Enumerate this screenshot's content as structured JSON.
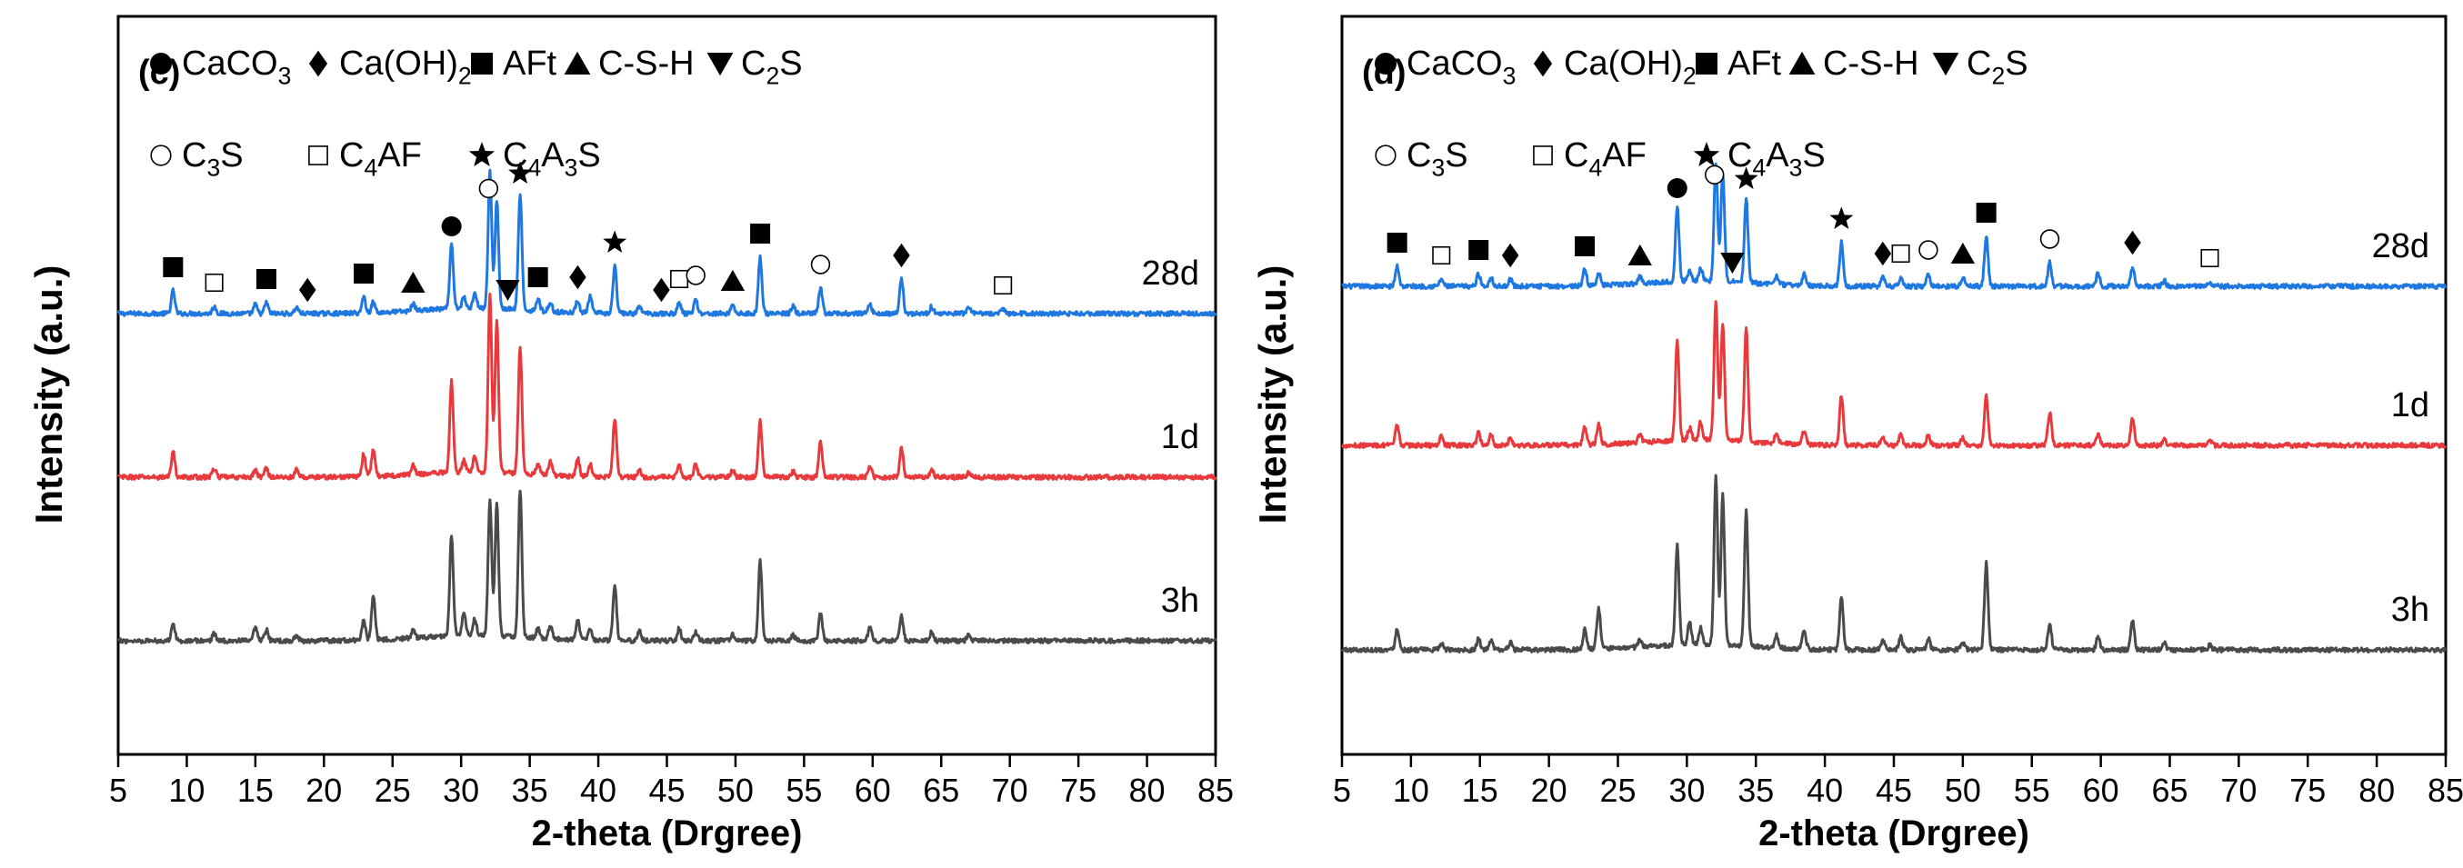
{
  "chart_data": [
    {
      "panel": "(c)",
      "type": "line",
      "xlabel": "2-theta (Drgree)",
      "ylabel": "Intensity (a.u.)",
      "xlim": [
        5,
        85
      ],
      "xticks": [
        5,
        10,
        15,
        20,
        25,
        30,
        35,
        40,
        45,
        50,
        55,
        60,
        65,
        70,
        75,
        80,
        85
      ],
      "legend": [
        {
          "symbol": "filled-circle",
          "label": "CaCO",
          "sub": "3",
          "tail": ""
        },
        {
          "symbol": "filled-diamond",
          "label": "Ca(OH)",
          "sub": "2",
          "tail": ""
        },
        {
          "symbol": "filled-square",
          "label": "AFt",
          "sub": "",
          "tail": ""
        },
        {
          "symbol": "filled-triangle-up",
          "label": "C-S-H",
          "sub": "",
          "tail": ""
        },
        {
          "symbol": "filled-triangle-down",
          "label": "C",
          "sub": "2",
          "tail": "S"
        },
        {
          "symbol": "open-circle",
          "label": "C",
          "sub": "3",
          "tail": "S"
        },
        {
          "symbol": "open-square",
          "label": "C",
          "sub": "4",
          "tail": "AF"
        },
        {
          "symbol": "star",
          "label": "C",
          "sub": "4",
          "tail": "A3S"
        }
      ],
      "peak_markers": [
        {
          "x": 9.0,
          "symbol": "filled-square"
        },
        {
          "x": 12.0,
          "symbol": "open-square"
        },
        {
          "x": 15.8,
          "symbol": "filled-square"
        },
        {
          "x": 18.8,
          "symbol": "filled-diamond"
        },
        {
          "x": 22.9,
          "symbol": "filled-square"
        },
        {
          "x": 26.5,
          "symbol": "filled-triangle-up"
        },
        {
          "x": 29.3,
          "symbol": "filled-circle"
        },
        {
          "x": 32.0,
          "symbol": "open-circle"
        },
        {
          "x": 33.4,
          "symbol": "filled-triangle-down"
        },
        {
          "x": 34.3,
          "symbol": "star"
        },
        {
          "x": 35.6,
          "symbol": "filled-square"
        },
        {
          "x": 38.5,
          "symbol": "filled-diamond"
        },
        {
          "x": 41.2,
          "symbol": "star"
        },
        {
          "x": 44.6,
          "symbol": "filled-diamond"
        },
        {
          "x": 45.9,
          "symbol": "open-square"
        },
        {
          "x": 47.1,
          "symbol": "open-circle"
        },
        {
          "x": 49.8,
          "symbol": "filled-triangle-up"
        },
        {
          "x": 51.8,
          "symbol": "filled-square"
        },
        {
          "x": 56.2,
          "symbol": "open-circle"
        },
        {
          "x": 62.1,
          "symbol": "filled-diamond"
        },
        {
          "x": 69.5,
          "symbol": "open-square"
        }
      ],
      "series": [
        {
          "name": "28d",
          "color": "#1f77e0",
          "offset": 400,
          "peaks": [
            [
              9.0,
              25
            ],
            [
              12.0,
              8
            ],
            [
              15.0,
              10
            ],
            [
              15.8,
              12
            ],
            [
              18.0,
              7
            ],
            [
              22.9,
              18
            ],
            [
              23.6,
              12
            ],
            [
              26.5,
              8
            ],
            [
              29.3,
              70
            ],
            [
              30.2,
              12
            ],
            [
              31.0,
              18
            ],
            [
              32.1,
              150
            ],
            [
              32.6,
              120
            ],
            [
              34.3,
              128
            ],
            [
              35.6,
              14
            ],
            [
              36.5,
              10
            ],
            [
              38.5,
              14
            ],
            [
              39.4,
              18
            ],
            [
              41.2,
              52
            ],
            [
              43.0,
              8
            ],
            [
              45.9,
              12
            ],
            [
              47.1,
              16
            ],
            [
              49.8,
              10
            ],
            [
              51.8,
              62
            ],
            [
              54.2,
              8
            ],
            [
              56.2,
              28
            ],
            [
              59.8,
              10
            ],
            [
              62.1,
              38
            ],
            [
              64.3,
              8
            ],
            [
              67.0,
              6
            ],
            [
              69.5,
              5
            ]
          ]
        },
        {
          "name": "1d",
          "color": "#e8393d",
          "offset": 220,
          "peaks": [
            [
              9.0,
              28
            ],
            [
              12.0,
              10
            ],
            [
              15.0,
              8
            ],
            [
              15.8,
              10
            ],
            [
              18.0,
              8
            ],
            [
              22.9,
              25
            ],
            [
              23.6,
              30
            ],
            [
              26.5,
              10
            ],
            [
              29.3,
              100
            ],
            [
              30.2,
              12
            ],
            [
              31.0,
              18
            ],
            [
              32.1,
              195
            ],
            [
              32.6,
              165
            ],
            [
              34.3,
              140
            ],
            [
              35.6,
              12
            ],
            [
              36.5,
              15
            ],
            [
              38.5,
              20
            ],
            [
              39.4,
              14
            ],
            [
              41.2,
              65
            ],
            [
              43.0,
              8
            ],
            [
              45.9,
              14
            ],
            [
              47.1,
              14
            ],
            [
              49.8,
              8
            ],
            [
              51.8,
              62
            ],
            [
              54.2,
              6
            ],
            [
              56.2,
              38
            ],
            [
              59.8,
              12
            ],
            [
              62.1,
              32
            ],
            [
              64.3,
              8
            ],
            [
              67.0,
              5
            ]
          ]
        },
        {
          "name": "3h",
          "color": "#4a4a4a",
          "offset": 40,
          "peaks": [
            [
              9.0,
              20
            ],
            [
              12.0,
              8
            ],
            [
              15.0,
              14
            ],
            [
              15.8,
              12
            ],
            [
              18.0,
              6
            ],
            [
              22.9,
              22
            ],
            [
              23.6,
              50
            ],
            [
              26.5,
              8
            ],
            [
              29.3,
              112
            ],
            [
              30.2,
              25
            ],
            [
              31.0,
              18
            ],
            [
              32.1,
              150
            ],
            [
              32.6,
              145
            ],
            [
              34.3,
              162
            ],
            [
              35.6,
              10
            ],
            [
              36.5,
              14
            ],
            [
              38.5,
              22
            ],
            [
              39.4,
              14
            ],
            [
              41.2,
              62
            ],
            [
              43.0,
              10
            ],
            [
              45.9,
              14
            ],
            [
              47.1,
              10
            ],
            [
              49.8,
              8
            ],
            [
              51.8,
              88
            ],
            [
              54.2,
              6
            ],
            [
              56.2,
              30
            ],
            [
              59.8,
              14
            ],
            [
              62.1,
              28
            ],
            [
              64.3,
              10
            ],
            [
              67.0,
              6
            ]
          ]
        }
      ]
    },
    {
      "panel": "(d)",
      "type": "line",
      "xlabel": "2-theta (Drgree)",
      "ylabel": "Intensity (a.u.)",
      "xlim": [
        5,
        85
      ],
      "xticks": [
        5,
        10,
        15,
        20,
        25,
        30,
        35,
        40,
        45,
        50,
        55,
        60,
        65,
        70,
        75,
        80,
        85
      ],
      "legend": [
        {
          "symbol": "filled-circle",
          "label": "CaCO",
          "sub": "3",
          "tail": ""
        },
        {
          "symbol": "filled-diamond",
          "label": "Ca(OH)",
          "sub": "2",
          "tail": ""
        },
        {
          "symbol": "filled-square",
          "label": "AFt",
          "sub": "",
          "tail": ""
        },
        {
          "symbol": "filled-triangle-up",
          "label": "C-S-H",
          "sub": "",
          "tail": ""
        },
        {
          "symbol": "filled-triangle-down",
          "label": "C",
          "sub": "2",
          "tail": "S"
        },
        {
          "symbol": "open-circle",
          "label": "C",
          "sub": "3",
          "tail": "S"
        },
        {
          "symbol": "open-square",
          "label": "C",
          "sub": "4",
          "tail": "AF"
        },
        {
          "symbol": "star",
          "label": "C",
          "sub": "4",
          "tail": "A3S"
        }
      ],
      "peak_markers": [
        {
          "x": 9.0,
          "symbol": "filled-square"
        },
        {
          "x": 12.2,
          "symbol": "open-square"
        },
        {
          "x": 14.9,
          "symbol": "filled-square"
        },
        {
          "x": 17.2,
          "symbol": "filled-diamond"
        },
        {
          "x": 22.6,
          "symbol": "filled-square"
        },
        {
          "x": 26.6,
          "symbol": "filled-triangle-up"
        },
        {
          "x": 29.3,
          "symbol": "filled-circle"
        },
        {
          "x": 32.0,
          "symbol": "open-circle"
        },
        {
          "x": 33.3,
          "symbol": "filled-triangle-down"
        },
        {
          "x": 34.3,
          "symbol": "star"
        },
        {
          "x": 41.2,
          "symbol": "star"
        },
        {
          "x": 44.2,
          "symbol": "filled-diamond"
        },
        {
          "x": 45.5,
          "symbol": "open-square"
        },
        {
          "x": 47.5,
          "symbol": "open-circle"
        },
        {
          "x": 50.0,
          "symbol": "filled-triangle-up"
        },
        {
          "x": 51.7,
          "symbol": "filled-square"
        },
        {
          "x": 56.3,
          "symbol": "open-circle"
        },
        {
          "x": 62.3,
          "symbol": "filled-diamond"
        },
        {
          "x": 67.9,
          "symbol": "open-square"
        }
      ],
      "series": [
        {
          "name": "28d",
          "color": "#1f77e0",
          "offset": 430,
          "peaks": [
            [
              9.0,
              22
            ],
            [
              12.2,
              8
            ],
            [
              14.9,
              14
            ],
            [
              15.8,
              10
            ],
            [
              17.2,
              8
            ],
            [
              22.6,
              18
            ],
            [
              23.6,
              14
            ],
            [
              26.6,
              8
            ],
            [
              29.3,
              82
            ],
            [
              30.2,
              12
            ],
            [
              31.0,
              15
            ],
            [
              32.1,
              130
            ],
            [
              32.6,
              120
            ],
            [
              34.3,
              92
            ],
            [
              36.5,
              10
            ],
            [
              38.5,
              12
            ],
            [
              41.2,
              48
            ],
            [
              44.2,
              10
            ],
            [
              45.5,
              10
            ],
            [
              47.5,
              14
            ],
            [
              50.0,
              10
            ],
            [
              51.7,
              55
            ],
            [
              56.3,
              26
            ],
            [
              59.8,
              14
            ],
            [
              62.3,
              22
            ],
            [
              64.6,
              6
            ],
            [
              67.9,
              5
            ]
          ]
        },
        {
          "name": "1d",
          "color": "#e8393d",
          "offset": 255,
          "peaks": [
            [
              9.0,
              22
            ],
            [
              12.2,
              10
            ],
            [
              14.9,
              14
            ],
            [
              15.8,
              12
            ],
            [
              17.2,
              8
            ],
            [
              22.6,
              20
            ],
            [
              23.6,
              22
            ],
            [
              26.6,
              8
            ],
            [
              29.3,
              110
            ],
            [
              30.2,
              14
            ],
            [
              31.0,
              20
            ],
            [
              32.1,
              150
            ],
            [
              32.6,
              130
            ],
            [
              34.3,
              125
            ],
            [
              36.5,
              12
            ],
            [
              38.5,
              16
            ],
            [
              41.2,
              55
            ],
            [
              44.2,
              10
            ],
            [
              45.5,
              12
            ],
            [
              47.5,
              12
            ],
            [
              50.0,
              8
            ],
            [
              51.7,
              55
            ],
            [
              56.3,
              36
            ],
            [
              59.8,
              12
            ],
            [
              62.3,
              30
            ],
            [
              64.6,
              8
            ],
            [
              67.9,
              5
            ]
          ]
        },
        {
          "name": "3h",
          "color": "#4a4a4a",
          "offset": 30,
          "peaks": [
            [
              9.0,
              24
            ],
            [
              12.2,
              8
            ],
            [
              14.9,
              12
            ],
            [
              15.8,
              10
            ],
            [
              17.2,
              8
            ],
            [
              22.6,
              22
            ],
            [
              23.6,
              45
            ],
            [
              26.6,
              8
            ],
            [
              29.3,
              110
            ],
            [
              30.2,
              25
            ],
            [
              31.0,
              18
            ],
            [
              32.1,
              185
            ],
            [
              32.6,
              165
            ],
            [
              34.3,
              150
            ],
            [
              36.5,
              14
            ],
            [
              38.5,
              22
            ],
            [
              41.2,
              58
            ],
            [
              44.2,
              10
            ],
            [
              45.5,
              14
            ],
            [
              47.5,
              12
            ],
            [
              50.0,
              8
            ],
            [
              51.7,
              95
            ],
            [
              56.3,
              28
            ],
            [
              59.8,
              14
            ],
            [
              62.3,
              32
            ],
            [
              64.6,
              8
            ],
            [
              67.9,
              5
            ]
          ]
        }
      ]
    }
  ]
}
